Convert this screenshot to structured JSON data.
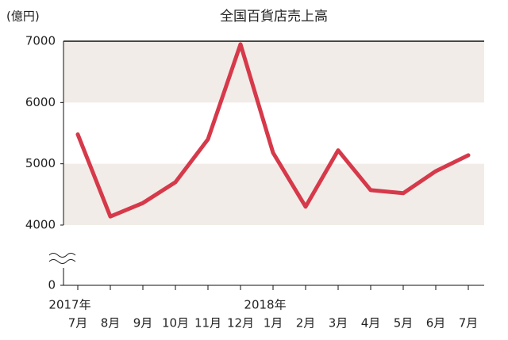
{
  "chart_data": {
    "type": "line",
    "title": "全国百貨店売上高",
    "y_label": "(億円)",
    "categories": [
      "7月",
      "8月",
      "9月",
      "10月",
      "11月",
      "12月",
      "1月",
      "2月",
      "3月",
      "4月",
      "5月",
      "6月",
      "7月"
    ],
    "years": [
      "2017年",
      null,
      null,
      null,
      null,
      null,
      "2018年",
      null,
      null,
      null,
      null,
      null,
      null
    ],
    "values": [
      5480,
      4140,
      4360,
      4700,
      5400,
      6950,
      5180,
      4300,
      5220,
      4570,
      4520,
      4880,
      5140
    ],
    "color": "#d6394a",
    "ylim": [
      4000,
      7000
    ],
    "yticks": [
      0,
      4000,
      5000,
      6000,
      7000
    ],
    "axis_break": true,
    "bands": true,
    "band_color": "#f1ece7"
  }
}
